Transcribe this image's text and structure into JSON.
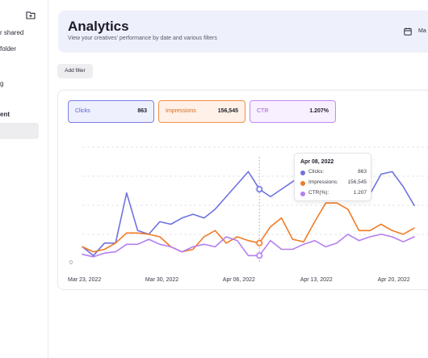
{
  "sidebar": {
    "items": [
      {
        "label": "r shared"
      },
      {
        "label": "folder"
      },
      {
        "label": "g"
      },
      {
        "label": "ent"
      }
    ]
  },
  "header": {
    "title": "Analytics",
    "subtitle": "View your creatives' performance by date and various filters",
    "date_label": "Ma"
  },
  "toolbar": {
    "add_filter_label": "Add filter"
  },
  "metrics": [
    {
      "label": "Clicks",
      "value": "863"
    },
    {
      "label": "Impressions",
      "value": "156,545"
    },
    {
      "label": "CTR",
      "value": "1.207%"
    }
  ],
  "colors": {
    "clicks": "#6f72e0",
    "impressions": "#f07b26",
    "ctr": "#b47ff0"
  },
  "tooltip": {
    "date": "Apr 08, 2022",
    "rows": [
      {
        "label": "Clicks:",
        "value": "863"
      },
      {
        "label": "Impressions:",
        "value": "156,545"
      },
      {
        "label": "CTR(%):",
        "value": "1.207"
      }
    ]
  },
  "chart_data": {
    "type": "line",
    "x_tick_labels": [
      "Mar 23, 2022",
      "Mar 30, 2022",
      "Apr 06, 2022",
      "Apr 13, 2022",
      "Apr 20, 2022"
    ],
    "y_tick_labels": [
      "0"
    ],
    "x": [
      "Mar 23",
      "Mar 24",
      "Mar 25",
      "Mar 26",
      "Mar 27",
      "Mar 28",
      "Mar 29",
      "Mar 30",
      "Mar 31",
      "Apr 01",
      "Apr 02",
      "Apr 03",
      "Apr 04",
      "Apr 05",
      "Apr 06",
      "Apr 07",
      "Apr 08",
      "Apr 09",
      "Apr 10",
      "Apr 11",
      "Apr 12",
      "Apr 13",
      "Apr 14",
      "Apr 15",
      "Apr 16",
      "Apr 17",
      "Apr 18",
      "Apr 19",
      "Apr 20",
      "Apr 21",
      "Apr 22"
    ],
    "ylim": [
      0,
      1
    ],
    "series": [
      {
        "name": "Clicks",
        "values": [
          0.12,
          0.05,
          0.15,
          0.15,
          0.55,
          0.25,
          0.22,
          0.32,
          0.3,
          0.35,
          0.38,
          0.35,
          0.42,
          0.52,
          0.62,
          0.72,
          0.58,
          0.52,
          0.58,
          0.64,
          0.7,
          0.64,
          0.6,
          0.5,
          0.62,
          0.52,
          0.54,
          0.7,
          0.72,
          0.6,
          0.45
        ]
      },
      {
        "name": "Impressions",
        "values": [
          0.12,
          0.08,
          0.1,
          0.15,
          0.23,
          0.23,
          0.22,
          0.2,
          0.12,
          0.08,
          0.1,
          0.2,
          0.25,
          0.15,
          0.2,
          0.17,
          0.15,
          0.28,
          0.35,
          0.18,
          0.16,
          0.32,
          0.47,
          0.47,
          0.42,
          0.25,
          0.25,
          0.3,
          0.25,
          0.22,
          0.27
        ]
      },
      {
        "name": "CTR(%)",
        "values": [
          0.06,
          0.04,
          0.07,
          0.08,
          0.14,
          0.14,
          0.18,
          0.14,
          0.12,
          0.08,
          0.12,
          0.14,
          0.12,
          0.2,
          0.17,
          0.05,
          0.05,
          0.17,
          0.1,
          0.1,
          0.14,
          0.17,
          0.12,
          0.15,
          0.22,
          0.17,
          0.2,
          0.22,
          0.2,
          0.16,
          0.2
        ]
      }
    ],
    "highlight_index": 16
  }
}
